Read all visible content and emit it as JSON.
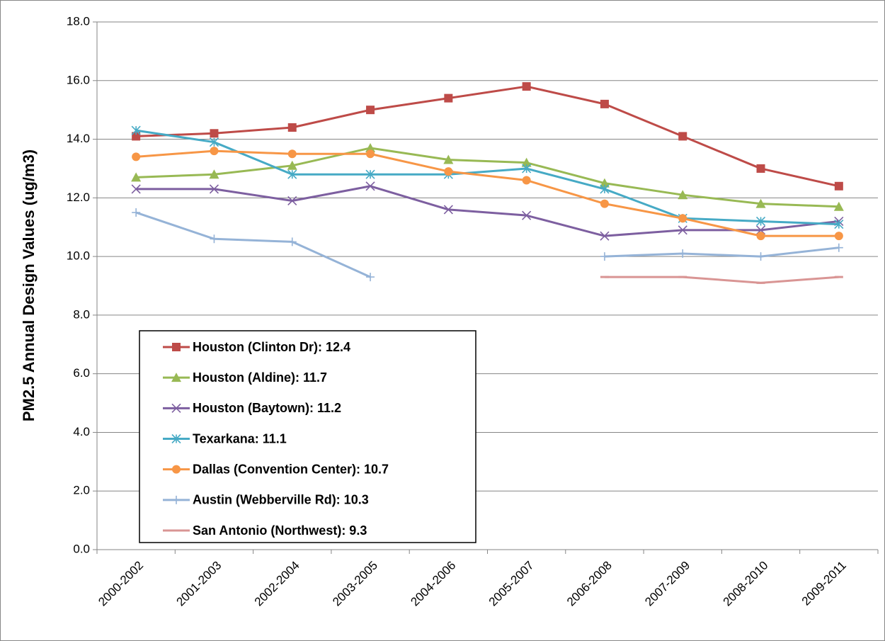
{
  "chart_data": {
    "type": "line",
    "y_label": "PM2.5 Annual Design Values (ug/m3)",
    "categories": [
      "2000-2002",
      "2001-2003",
      "2002-2004",
      "2003-2005",
      "2004-2006",
      "2005-2007",
      "2006-2008",
      "2007-2009",
      "2008-2010",
      "2009-2011"
    ],
    "series": [
      {
        "name": "Houston (Clinton Dr): 12.4",
        "color": "#be4b48",
        "marker": "square",
        "values": [
          14.1,
          14.2,
          14.4,
          15.0,
          15.4,
          15.8,
          15.2,
          14.1,
          13.0,
          12.4
        ]
      },
      {
        "name": "Houston (Aldine): 11.7",
        "color": "#98b954",
        "marker": "triangle",
        "values": [
          12.7,
          12.8,
          13.1,
          13.7,
          13.3,
          13.2,
          12.5,
          12.1,
          11.8,
          11.7
        ]
      },
      {
        "name": "Houston (Baytown): 11.2",
        "color": "#7d5fa0",
        "marker": "x",
        "values": [
          12.3,
          12.3,
          11.9,
          12.4,
          11.6,
          11.4,
          10.7,
          10.9,
          10.9,
          11.2
        ]
      },
      {
        "name": "Texarkana: 11.1",
        "color": "#46aac5",
        "marker": "asterisk",
        "values": [
          14.3,
          13.9,
          12.8,
          12.8,
          12.8,
          13.0,
          12.3,
          11.3,
          11.2,
          11.1
        ]
      },
      {
        "name": "Dallas (Convention Center): 10.7",
        "color": "#f79646",
        "marker": "circle",
        "values": [
          13.4,
          13.6,
          13.5,
          13.5,
          12.9,
          12.6,
          11.8,
          11.3,
          10.7,
          10.7
        ]
      },
      {
        "name": "Austin (Webberville Rd): 10.3",
        "color": "#95b3d7",
        "marker": "plus",
        "values": [
          11.5,
          10.6,
          10.5,
          9.3,
          null,
          null,
          10.0,
          10.1,
          10.0,
          10.3
        ]
      },
      {
        "name": "San Antonio (Northwest): 9.3",
        "color": "#d99594",
        "marker": "dash",
        "values": [
          null,
          null,
          null,
          null,
          null,
          null,
          9.3,
          9.3,
          9.1,
          9.3
        ]
      }
    ],
    "ylim": [
      0,
      18
    ],
    "yticks": [
      {
        "value": 0,
        "label": "0.0"
      },
      {
        "value": 2,
        "label": "2.0"
      },
      {
        "value": 4,
        "label": "4.0"
      },
      {
        "value": 6,
        "label": "6.0"
      },
      {
        "value": 8,
        "label": "8.0"
      },
      {
        "value": 10,
        "label": "10.0"
      },
      {
        "value": 12,
        "label": "12.0"
      },
      {
        "value": 14,
        "label": "14.0"
      },
      {
        "value": 16,
        "label": "16.0"
      },
      {
        "value": 18,
        "label": "18.0"
      }
    ],
    "grid": true,
    "legend": "lower-left"
  }
}
